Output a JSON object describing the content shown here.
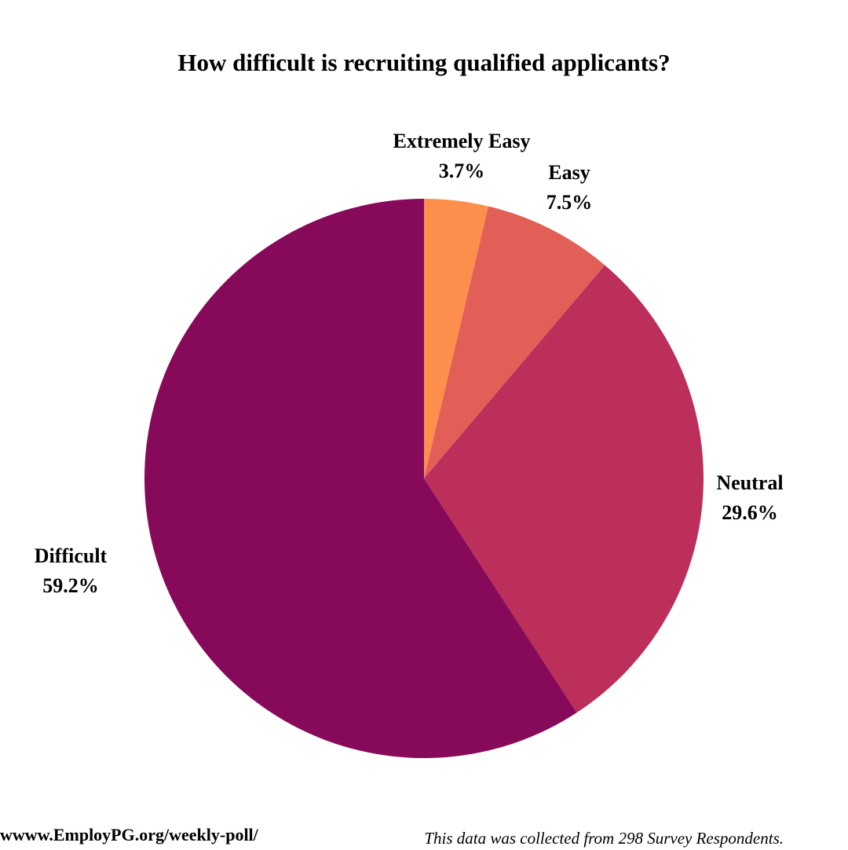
{
  "chart_data": {
    "type": "pie",
    "title": "How difficult is recruiting qualified applicants?",
    "slices": [
      {
        "label": "Extremely Easy",
        "value": 3.7,
        "value_label": "3.7%",
        "color": "#fd8f4d"
      },
      {
        "label": "Easy",
        "value": 7.5,
        "value_label": "7.5%",
        "color": "#e25f58"
      },
      {
        "label": "Neutral",
        "value": 29.6,
        "value_label": "29.6%",
        "color": "#bb2f5a"
      },
      {
        "label": "Difficult",
        "value": 59.2,
        "value_label": "59.2%",
        "color": "#870a5a"
      }
    ],
    "start_angle": "12 o'clock",
    "direction": "clockwise",
    "legend": "none"
  },
  "footer": {
    "url": "wwww.EmployPG.org/weekly-poll/",
    "note": "This data was collected from 298 Survey Respondents."
  }
}
